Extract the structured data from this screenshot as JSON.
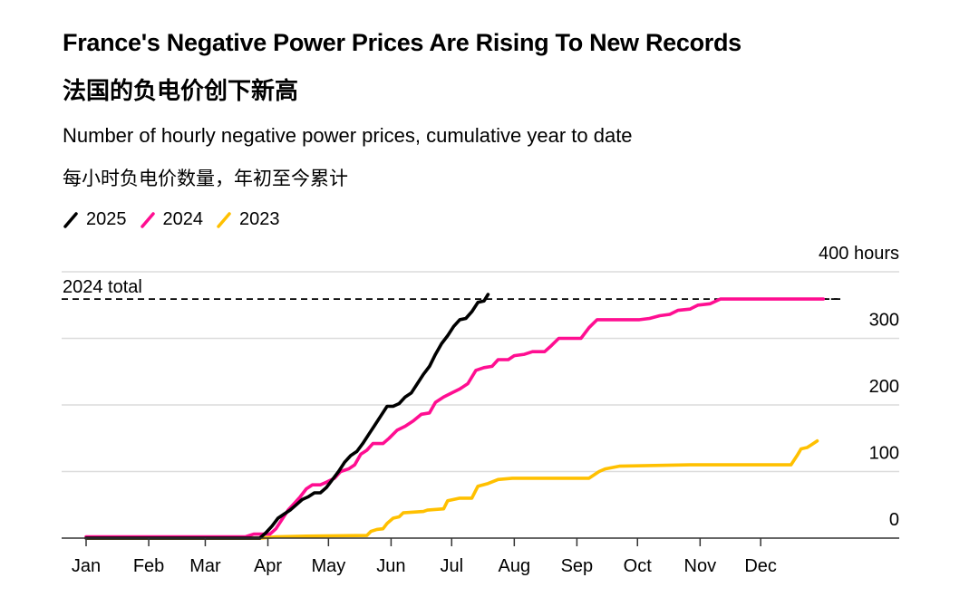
{
  "header": {
    "title": "France's Negative Power Prices Are Rising To New Records",
    "title_cn": "法国的负电价创下新高",
    "subtitle": "Number of hourly negative power prices, cumulative year to date",
    "subtitle_cn": "每小时负电价数量，年初至今累计"
  },
  "chart_data": {
    "type": "line",
    "title": "France's Negative Power Prices Are Rising To New Records",
    "subtitle": "Number of hourly negative power prices, cumulative year to date",
    "xlabel": "",
    "ylabel": "hours",
    "x_unit": "day of year",
    "x_ticks": [
      "Jan",
      "Feb",
      "Mar",
      "Apr",
      "May",
      "Jun",
      "Jul",
      "Aug",
      "Sep",
      "Oct",
      "Nov",
      "Dec"
    ],
    "y_ticks": [
      0,
      100,
      200,
      300,
      400
    ],
    "y_tick_labels": [
      "0",
      "100",
      "200",
      "300",
      "400 hours"
    ],
    "ylim": [
      0,
      400
    ],
    "xlim": [
      1,
      366
    ],
    "grid": true,
    "legend_position": "top-left",
    "reference_line": {
      "label": "2024 total",
      "value": 359
    },
    "series": [
      {
        "name": "2025",
        "color": "#000000",
        "points": [
          [
            1,
            0
          ],
          [
            87,
            0
          ],
          [
            90,
            8
          ],
          [
            93,
            18
          ],
          [
            96,
            30
          ],
          [
            99,
            36
          ],
          [
            102,
            42
          ],
          [
            105,
            50
          ],
          [
            108,
            58
          ],
          [
            111,
            62
          ],
          [
            114,
            68
          ],
          [
            117,
            68
          ],
          [
            120,
            76
          ],
          [
            123,
            88
          ],
          [
            126,
            100
          ],
          [
            129,
            114
          ],
          [
            132,
            124
          ],
          [
            135,
            130
          ],
          [
            138,
            142
          ],
          [
            141,
            156
          ],
          [
            144,
            170
          ],
          [
            147,
            184
          ],
          [
            150,
            198
          ],
          [
            153,
            198
          ],
          [
            156,
            202
          ],
          [
            159,
            212
          ],
          [
            162,
            218
          ],
          [
            165,
            232
          ],
          [
            168,
            246
          ],
          [
            171,
            258
          ],
          [
            174,
            276
          ],
          [
            177,
            292
          ],
          [
            180,
            304
          ],
          [
            183,
            318
          ],
          [
            186,
            328
          ],
          [
            189,
            330
          ],
          [
            192,
            340
          ],
          [
            195,
            354
          ],
          [
            198,
            356
          ],
          [
            200,
            366
          ]
        ]
      },
      {
        "name": "2024",
        "color": "#ff0e91",
        "points": [
          [
            1,
            2
          ],
          [
            80,
            2
          ],
          [
            84,
            6
          ],
          [
            92,
            6
          ],
          [
            95,
            14
          ],
          [
            98,
            28
          ],
          [
            101,
            42
          ],
          [
            104,
            52
          ],
          [
            107,
            62
          ],
          [
            110,
            74
          ],
          [
            113,
            80
          ],
          [
            117,
            80
          ],
          [
            120,
            84
          ],
          [
            124,
            90
          ],
          [
            127,
            100
          ],
          [
            131,
            104
          ],
          [
            134,
            110
          ],
          [
            137,
            126
          ],
          [
            140,
            132
          ],
          [
            143,
            142
          ],
          [
            148,
            142
          ],
          [
            151,
            150
          ],
          [
            155,
            162
          ],
          [
            159,
            168
          ],
          [
            163,
            176
          ],
          [
            167,
            186
          ],
          [
            171,
            188
          ],
          [
            174,
            204
          ],
          [
            178,
            212
          ],
          [
            182,
            218
          ],
          [
            186,
            224
          ],
          [
            190,
            232
          ],
          [
            194,
            252
          ],
          [
            198,
            256
          ],
          [
            202,
            258
          ],
          [
            205,
            268
          ],
          [
            210,
            268
          ],
          [
            213,
            274
          ],
          [
            218,
            276
          ],
          [
            222,
            280
          ],
          [
            228,
            280
          ],
          [
            231,
            288
          ],
          [
            235,
            300
          ],
          [
            246,
            300
          ],
          [
            250,
            316
          ],
          [
            254,
            328
          ],
          [
            275,
            328
          ],
          [
            280,
            330
          ],
          [
            285,
            334
          ],
          [
            290,
            336
          ],
          [
            294,
            342
          ],
          [
            300,
            344
          ],
          [
            304,
            350
          ],
          [
            310,
            352
          ],
          [
            315,
            359
          ],
          [
            366,
            359
          ]
        ]
      },
      {
        "name": "2023",
        "color": "#ffc000",
        "points": [
          [
            1,
            0
          ],
          [
            88,
            0
          ],
          [
            95,
            2
          ],
          [
            110,
            3
          ],
          [
            140,
            4
          ],
          [
            142,
            10
          ],
          [
            145,
            13
          ],
          [
            148,
            14
          ],
          [
            150,
            22
          ],
          [
            153,
            30
          ],
          [
            156,
            32
          ],
          [
            158,
            38
          ],
          [
            168,
            40
          ],
          [
            170,
            42
          ],
          [
            178,
            44
          ],
          [
            180,
            56
          ],
          [
            186,
            60
          ],
          [
            192,
            60
          ],
          [
            195,
            78
          ],
          [
            200,
            82
          ],
          [
            205,
            88
          ],
          [
            212,
            90
          ],
          [
            250,
            90
          ],
          [
            255,
            100
          ],
          [
            258,
            104
          ],
          [
            265,
            108
          ],
          [
            300,
            110
          ],
          [
            330,
            110
          ],
          [
            350,
            110
          ],
          [
            353,
            124
          ],
          [
            355,
            134
          ],
          [
            358,
            136
          ],
          [
            360,
            140
          ],
          [
            363,
            146
          ]
        ]
      }
    ]
  },
  "legend": [
    {
      "label": "2025",
      "color": "#000000"
    },
    {
      "label": "2024",
      "color": "#ff0e91"
    },
    {
      "label": "2023",
      "color": "#ffc000"
    }
  ]
}
